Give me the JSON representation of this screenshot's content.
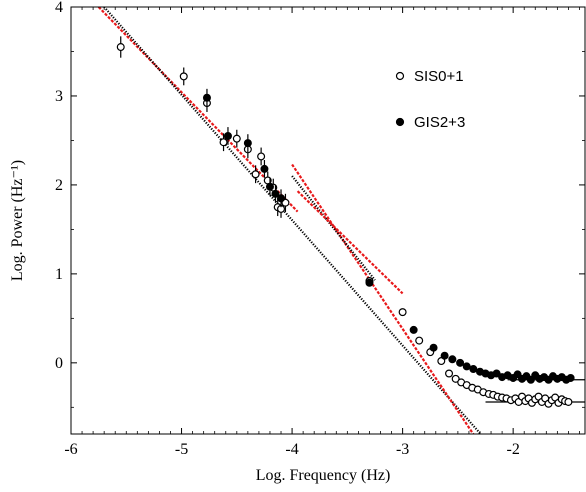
{
  "chart_data": {
    "type": "scatter",
    "xlabel": "Log. Frequency (Hz)",
    "ylabel": "Log. Power (Hz⁻¹)",
    "xlim": [
      -6,
      -1.35
    ],
    "ylim": [
      -0.8,
      4
    ],
    "xticks": [
      -6,
      -5,
      -4,
      -3,
      -2
    ],
    "yticks": [
      0,
      1,
      2,
      3,
      4
    ],
    "xtick_labels": [
      "-6",
      "-5",
      "-4",
      "-3",
      "-2"
    ],
    "ytick_labels": [
      "0",
      "1",
      "2",
      "3",
      "4"
    ],
    "grid": false,
    "legend_position": "top-right",
    "series": [
      {
        "name": "SIS0+1",
        "marker": "open-circle",
        "points": [
          {
            "x": -5.55,
            "y": 3.55,
            "err": 0.12
          },
          {
            "x": -4.98,
            "y": 3.22,
            "err": 0.1
          },
          {
            "x": -4.77,
            "y": 2.92,
            "err": 0.1
          },
          {
            "x": -4.62,
            "y": 2.48,
            "err": 0.1
          },
          {
            "x": -4.5,
            "y": 2.52,
            "err": 0.1
          },
          {
            "x": -4.4,
            "y": 2.4,
            "err": 0.1
          },
          {
            "x": -4.33,
            "y": 2.12,
            "err": 0.1
          },
          {
            "x": -4.28,
            "y": 2.32,
            "err": 0.1
          },
          {
            "x": -4.22,
            "y": 2.05,
            "err": 0.1
          },
          {
            "x": -4.17,
            "y": 1.97,
            "err": 0.1
          },
          {
            "x": -4.13,
            "y": 1.75,
            "err": 0.1
          },
          {
            "x": -4.1,
            "y": 1.73,
            "err": 0.1
          },
          {
            "x": -4.06,
            "y": 1.8,
            "err": 0.1
          },
          {
            "x": -3.3,
            "y": 0.92,
            "err": 0
          },
          {
            "x": -3.0,
            "y": 0.57,
            "err": 0
          },
          {
            "x": -2.85,
            "y": 0.25,
            "err": 0
          },
          {
            "x": -2.75,
            "y": 0.12,
            "err": 0
          },
          {
            "x": -2.65,
            "y": 0.02,
            "err": 0
          },
          {
            "x": -2.58,
            "y": -0.12,
            "err": 0
          },
          {
            "x": -2.52,
            "y": -0.18,
            "err": 0
          },
          {
            "x": -2.47,
            "y": -0.22,
            "err": 0
          },
          {
            "x": -2.42,
            "y": -0.25,
            "err": 0
          },
          {
            "x": -2.37,
            "y": -0.28,
            "err": 0
          },
          {
            "x": -2.32,
            "y": -0.3,
            "err": 0
          },
          {
            "x": -2.27,
            "y": -0.33,
            "err": 0
          },
          {
            "x": -2.22,
            "y": -0.35,
            "err": 0
          },
          {
            "x": -2.18,
            "y": -0.36,
            "err": 0
          },
          {
            "x": -2.14,
            "y": -0.38,
            "err": 0
          },
          {
            "x": -2.1,
            "y": -0.39,
            "err": 0
          },
          {
            "x": -2.06,
            "y": -0.4,
            "err": 0
          },
          {
            "x": -2.02,
            "y": -0.42,
            "err": 0
          },
          {
            "x": -1.98,
            "y": -0.4,
            "err": 0
          },
          {
            "x": -1.95,
            "y": -0.44,
            "err": 0
          },
          {
            "x": -1.92,
            "y": -0.38,
            "err": 0
          },
          {
            "x": -1.89,
            "y": -0.43,
            "err": 0
          },
          {
            "x": -1.86,
            "y": -0.4,
            "err": 0
          },
          {
            "x": -1.83,
            "y": -0.45,
            "err": 0
          },
          {
            "x": -1.8,
            "y": -0.41,
            "err": 0
          },
          {
            "x": -1.77,
            "y": -0.38,
            "err": 0
          },
          {
            "x": -1.74,
            "y": -0.44,
            "err": 0
          },
          {
            "x": -1.71,
            "y": -0.4,
            "err": 0
          },
          {
            "x": -1.68,
            "y": -0.46,
            "err": 0
          },
          {
            "x": -1.65,
            "y": -0.42,
            "err": 0
          },
          {
            "x": -1.62,
            "y": -0.39,
            "err": 0
          },
          {
            "x": -1.59,
            "y": -0.45,
            "err": 0
          },
          {
            "x": -1.56,
            "y": -0.41,
            "err": 0
          },
          {
            "x": -1.53,
            "y": -0.43,
            "err": 0
          },
          {
            "x": -1.5,
            "y": -0.44,
            "err": 0
          }
        ]
      },
      {
        "name": "GIS2+3",
        "marker": "filled-circle",
        "points": [
          {
            "x": -4.77,
            "y": 2.98,
            "err": 0.1
          },
          {
            "x": -4.58,
            "y": 2.55,
            "err": 0.1
          },
          {
            "x": -4.4,
            "y": 2.47,
            "err": 0.1
          },
          {
            "x": -4.25,
            "y": 2.18,
            "err": 0.1
          },
          {
            "x": -4.2,
            "y": 1.98,
            "err": 0.1
          },
          {
            "x": -4.15,
            "y": 1.9,
            "err": 0.1
          },
          {
            "x": -4.1,
            "y": 1.85,
            "err": 0.1
          },
          {
            "x": -3.3,
            "y": 0.9,
            "err": 0
          },
          {
            "x": -2.9,
            "y": 0.37,
            "err": 0
          },
          {
            "x": -2.72,
            "y": 0.17,
            "err": 0
          },
          {
            "x": -2.62,
            "y": 0.08,
            "err": 0
          },
          {
            "x": -2.55,
            "y": 0.04,
            "err": 0
          },
          {
            "x": -2.48,
            "y": 0.0,
            "err": 0
          },
          {
            "x": -2.42,
            "y": -0.04,
            "err": 0
          },
          {
            "x": -2.36,
            "y": -0.07,
            "err": 0
          },
          {
            "x": -2.3,
            "y": -0.1,
            "err": 0
          },
          {
            "x": -2.25,
            "y": -0.12,
            "err": 0
          },
          {
            "x": -2.2,
            "y": -0.14,
            "err": 0
          },
          {
            "x": -2.15,
            "y": -0.12,
            "err": 0
          },
          {
            "x": -2.1,
            "y": -0.16,
            "err": 0
          },
          {
            "x": -2.05,
            "y": -0.14,
            "err": 0
          },
          {
            "x": -2.0,
            "y": -0.17,
            "err": 0
          },
          {
            "x": -1.96,
            "y": -0.13,
            "err": 0
          },
          {
            "x": -1.92,
            "y": -0.18,
            "err": 0
          },
          {
            "x": -1.88,
            "y": -0.15,
            "err": 0
          },
          {
            "x": -1.84,
            "y": -0.19,
            "err": 0
          },
          {
            "x": -1.8,
            "y": -0.14,
            "err": 0
          },
          {
            "x": -1.76,
            "y": -0.18,
            "err": 0
          },
          {
            "x": -1.72,
            "y": -0.16,
            "err": 0
          },
          {
            "x": -1.68,
            "y": -0.19,
            "err": 0
          },
          {
            "x": -1.64,
            "y": -0.15,
            "err": 0
          },
          {
            "x": -1.6,
            "y": -0.18,
            "err": 0
          },
          {
            "x": -1.56,
            "y": -0.16,
            "err": 0
          },
          {
            "x": -1.52,
            "y": -0.19,
            "err": 0
          },
          {
            "x": -1.48,
            "y": -0.17,
            "err": 0
          }
        ]
      }
    ],
    "lines": [
      {
        "color": "#e8191b",
        "style": "dashed",
        "x": [
          -5.75,
          -3.95
        ],
        "y": [
          4.0,
          1.7
        ]
      },
      {
        "color": "#000000",
        "style": "dotted",
        "x": [
          -5.7,
          -2.28
        ],
        "y": [
          4.0,
          -0.82
        ]
      },
      {
        "color": "#e8191b",
        "style": "dashed",
        "x": [
          -4.0,
          -2.35
        ],
        "y": [
          2.23,
          -0.82
        ]
      },
      {
        "color": "#000000",
        "style": "dotted",
        "x": [
          -4.0,
          -3.25
        ],
        "y": [
          2.1,
          0.93
        ]
      },
      {
        "color": "#e8191b",
        "style": "dashed",
        "x": [
          -3.95,
          -3.0
        ],
        "y": [
          1.93,
          0.78
        ]
      },
      {
        "color": "#000000",
        "style": "solid",
        "x": [
          -2.25,
          -1.35
        ],
        "y": [
          -0.44,
          -0.44
        ]
      },
      {
        "color": "#000000",
        "style": "solid",
        "x": [
          -2.05,
          -1.35
        ],
        "y": [
          -0.19,
          -0.19
        ]
      }
    ]
  }
}
